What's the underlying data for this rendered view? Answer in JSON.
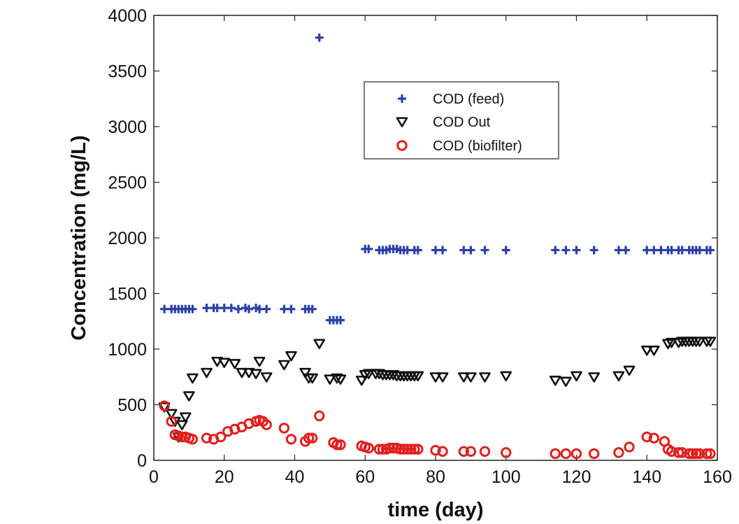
{
  "chart_data": {
    "type": "scatter",
    "xlabel": "time (day)",
    "ylabel": "Concentration (mg/L)",
    "xlim": [
      0,
      160
    ],
    "ylim": [
      0,
      4000
    ],
    "xticks": [
      "0",
      "20",
      "40",
      "60",
      "80",
      "100",
      "120",
      "140",
      "160"
    ],
    "yticks": [
      "0",
      "500",
      "1000",
      "1500",
      "2000",
      "2500",
      "3000",
      "3500",
      "4000"
    ],
    "grid": false,
    "legend_position": "upper-center",
    "series": [
      {
        "name": "COD (feed)",
        "marker": "plus",
        "color": "#2b3fa8",
        "points": [
          [
            3,
            1360
          ],
          [
            5,
            1360
          ],
          [
            6,
            1360
          ],
          [
            7,
            1360
          ],
          [
            8,
            1360
          ],
          [
            9,
            1360
          ],
          [
            10,
            1360
          ],
          [
            11,
            1360
          ],
          [
            15,
            1370
          ],
          [
            17,
            1370
          ],
          [
            18,
            1370
          ],
          [
            20,
            1370
          ],
          [
            22,
            1370
          ],
          [
            24,
            1360
          ],
          [
            26,
            1370
          ],
          [
            27,
            1360
          ],
          [
            29,
            1370
          ],
          [
            30,
            1360
          ],
          [
            32,
            1360
          ],
          [
            37,
            1360
          ],
          [
            39,
            1360
          ],
          [
            43,
            1360
          ],
          [
            44,
            1360
          ],
          [
            45,
            1360
          ],
          [
            47,
            3800
          ],
          [
            50,
            1260
          ],
          [
            51,
            1260
          ],
          [
            52,
            1260
          ],
          [
            53,
            1260
          ],
          [
            60,
            1900
          ],
          [
            61,
            1900
          ],
          [
            64,
            1890
          ],
          [
            65,
            1890
          ],
          [
            66,
            1890
          ],
          [
            67,
            1900
          ],
          [
            68,
            1900
          ],
          [
            69,
            1900
          ],
          [
            70,
            1890
          ],
          [
            71,
            1890
          ],
          [
            72,
            1890
          ],
          [
            74,
            1890
          ],
          [
            75,
            1890
          ],
          [
            80,
            1890
          ],
          [
            82,
            1890
          ],
          [
            88,
            1890
          ],
          [
            90,
            1890
          ],
          [
            94,
            1890
          ],
          [
            100,
            1890
          ],
          [
            114,
            1890
          ],
          [
            117,
            1890
          ],
          [
            120,
            1890
          ],
          [
            125,
            1890
          ],
          [
            132,
            1890
          ],
          [
            134,
            1890
          ],
          [
            140,
            1890
          ],
          [
            142,
            1890
          ],
          [
            144,
            1890
          ],
          [
            146,
            1890
          ],
          [
            147,
            1890
          ],
          [
            149,
            1890
          ],
          [
            150,
            1890
          ],
          [
            152,
            1890
          ],
          [
            153,
            1890
          ],
          [
            154,
            1890
          ],
          [
            155,
            1890
          ],
          [
            157,
            1890
          ],
          [
            158,
            1890
          ]
        ]
      },
      {
        "name": "COD Out",
        "marker": "triangle-down",
        "color": "#111111",
        "points": [
          [
            3,
            480
          ],
          [
            5,
            420
          ],
          [
            6,
            350
          ],
          [
            7,
            210
          ],
          [
            8,
            320
          ],
          [
            9,
            390
          ],
          [
            10,
            580
          ],
          [
            11,
            740
          ],
          [
            15,
            790
          ],
          [
            18,
            890
          ],
          [
            20,
            880
          ],
          [
            23,
            870
          ],
          [
            25,
            790
          ],
          [
            27,
            790
          ],
          [
            29,
            780
          ],
          [
            30,
            890
          ],
          [
            32,
            750
          ],
          [
            37,
            860
          ],
          [
            39,
            940
          ],
          [
            43,
            790
          ],
          [
            44,
            740
          ],
          [
            45,
            740
          ],
          [
            47,
            1050
          ],
          [
            50,
            730
          ],
          [
            52,
            740
          ],
          [
            53,
            730
          ],
          [
            59,
            720
          ],
          [
            60,
            770
          ],
          [
            61,
            780
          ],
          [
            63,
            780
          ],
          [
            64,
            780
          ],
          [
            65,
            770
          ],
          [
            66,
            770
          ],
          [
            67,
            770
          ],
          [
            68,
            770
          ],
          [
            69,
            760
          ],
          [
            70,
            760
          ],
          [
            71,
            760
          ],
          [
            72,
            760
          ],
          [
            73,
            760
          ],
          [
            74,
            760
          ],
          [
            75,
            760
          ],
          [
            80,
            750
          ],
          [
            82,
            750
          ],
          [
            88,
            750
          ],
          [
            90,
            750
          ],
          [
            94,
            750
          ],
          [
            100,
            760
          ],
          [
            114,
            720
          ],
          [
            117,
            710
          ],
          [
            120,
            760
          ],
          [
            125,
            750
          ],
          [
            132,
            760
          ],
          [
            135,
            810
          ],
          [
            140,
            990
          ],
          [
            142,
            990
          ],
          [
            146,
            1050
          ],
          [
            147,
            1060
          ],
          [
            149,
            1060
          ],
          [
            150,
            1070
          ],
          [
            151,
            1070
          ],
          [
            152,
            1070
          ],
          [
            153,
            1070
          ],
          [
            154,
            1070
          ],
          [
            155,
            1070
          ],
          [
            157,
            1070
          ],
          [
            158,
            1070
          ]
        ]
      },
      {
        "name": "COD (biofilter)",
        "marker": "circle",
        "color": "#e0201e",
        "points": [
          [
            3,
            490
          ],
          [
            5,
            350
          ],
          [
            6,
            230
          ],
          [
            7,
            220
          ],
          [
            8,
            210
          ],
          [
            9,
            210
          ],
          [
            10,
            200
          ],
          [
            11,
            190
          ],
          [
            15,
            200
          ],
          [
            17,
            190
          ],
          [
            19,
            210
          ],
          [
            21,
            260
          ],
          [
            23,
            280
          ],
          [
            25,
            300
          ],
          [
            27,
            330
          ],
          [
            29,
            350
          ],
          [
            30,
            360
          ],
          [
            31,
            350
          ],
          [
            32,
            320
          ],
          [
            37,
            290
          ],
          [
            39,
            190
          ],
          [
            43,
            170
          ],
          [
            44,
            200
          ],
          [
            45,
            200
          ],
          [
            47,
            400
          ],
          [
            51,
            160
          ],
          [
            52,
            140
          ],
          [
            53,
            140
          ],
          [
            59,
            130
          ],
          [
            60,
            120
          ],
          [
            61,
            110
          ],
          [
            64,
            100
          ],
          [
            65,
            100
          ],
          [
            66,
            100
          ],
          [
            67,
            110
          ],
          [
            68,
            110
          ],
          [
            69,
            110
          ],
          [
            70,
            100
          ],
          [
            71,
            100
          ],
          [
            72,
            100
          ],
          [
            73,
            100
          ],
          [
            74,
            100
          ],
          [
            75,
            100
          ],
          [
            80,
            90
          ],
          [
            82,
            80
          ],
          [
            88,
            80
          ],
          [
            90,
            80
          ],
          [
            94,
            80
          ],
          [
            100,
            70
          ],
          [
            114,
            60
          ],
          [
            117,
            60
          ],
          [
            120,
            60
          ],
          [
            125,
            60
          ],
          [
            132,
            70
          ],
          [
            135,
            120
          ],
          [
            140,
            210
          ],
          [
            142,
            200
          ],
          [
            145,
            170
          ],
          [
            146,
            100
          ],
          [
            147,
            80
          ],
          [
            149,
            70
          ],
          [
            150,
            70
          ],
          [
            152,
            60
          ],
          [
            153,
            60
          ],
          [
            154,
            60
          ],
          [
            155,
            60
          ],
          [
            157,
            60
          ],
          [
            158,
            60
          ]
        ]
      }
    ]
  }
}
